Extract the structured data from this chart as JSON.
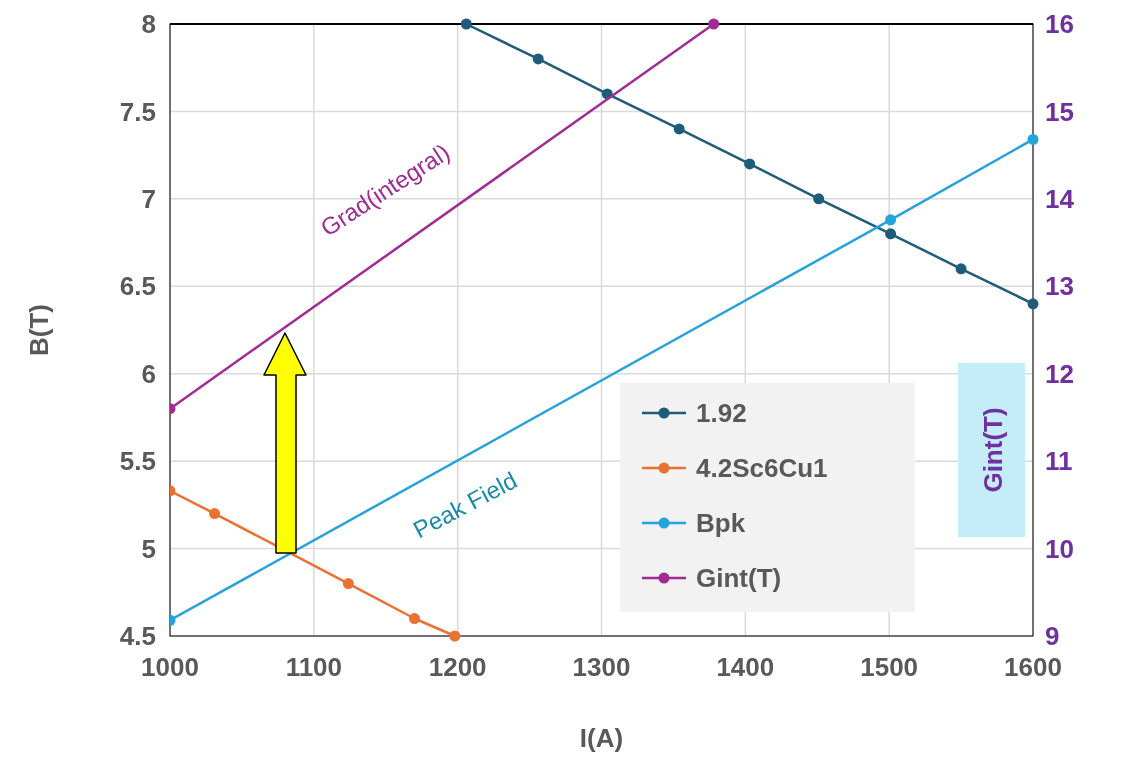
{
  "chart_data": {
    "type": "line",
    "xlabel": "I(A)",
    "ylabel": "B(T)",
    "y2label": "Gint(T)",
    "xlim": [
      1000,
      1600
    ],
    "xticks": [
      1000,
      1100,
      1200,
      1300,
      1400,
      1500,
      1600
    ],
    "ylim": [
      4.5,
      8
    ],
    "yticks": [
      4.5,
      5,
      5.5,
      6,
      6.5,
      7,
      7.5,
      8
    ],
    "y2lim": [
      9,
      16
    ],
    "y2ticks": [
      9,
      10,
      11,
      12,
      13,
      14,
      15,
      16
    ],
    "grid": true,
    "legend": "bottom right",
    "marker": "circle",
    "line_style": "solid",
    "series": [
      {
        "name": "1.92",
        "color": "#1f5c7a",
        "x": [
          1206,
          1256,
          1304,
          1354,
          1403,
          1451,
          1501,
          1550,
          1600
        ],
        "values": [
          8.0,
          7.8,
          7.6,
          7.4,
          7.2,
          7.0,
          6.8,
          6.6,
          6.4
        ]
      },
      {
        "name": "4.2Sc6Cu1",
        "color": "#e97132",
        "x": [
          1000,
          1031,
          1124,
          1170,
          1198
        ],
        "values": [
          5.33,
          5.2,
          4.8,
          4.6,
          4.5
        ]
      },
      {
        "name": "Bpk",
        "color": "#27a3dc",
        "x": [
          1000,
          1501,
          1600
        ],
        "values": [
          4.59,
          6.88,
          7.34
        ]
      },
      {
        "name": "Gint(T)",
        "color": "#a02b93",
        "axis": "y2",
        "x": [
          1000,
          1378
        ],
        "values": [
          11.6,
          16
        ]
      }
    ],
    "annotations": [
      "Grad(integral)",
      "Peak Field"
    ]
  }
}
